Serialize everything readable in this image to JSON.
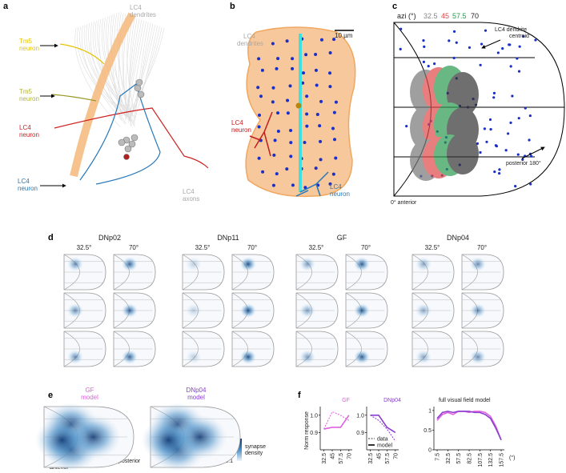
{
  "panels": {
    "a": {
      "label": "a",
      "lc4_dendrites": [
        "LC4",
        "dendrites"
      ],
      "tm5_neuron_1": [
        "Tm5",
        "neuron"
      ],
      "tm5_neuron_2": [
        "Tm5",
        "neuron"
      ],
      "lc4_neuron_red": [
        "LC4",
        "neuron"
      ],
      "lc4_neuron_blue": [
        "LC4",
        "neuron"
      ],
      "lc4_axons": [
        "LC4",
        "axons"
      ]
    },
    "b": {
      "label": "b",
      "lc4_dendrites": [
        "LC4",
        "dendrites"
      ],
      "scale_bar": "10 µm",
      "lc4_neuron_red": [
        "LC4",
        "neuron"
      ],
      "lc4_neuron_blue": [
        "LC4",
        "neuron"
      ]
    },
    "c": {
      "label": "c",
      "legend_title": "azi (°)",
      "legend": [
        "32.5",
        "45",
        "57.5",
        "70"
      ],
      "centroid_label": [
        "LC4 dendrite",
        "centroid"
      ],
      "posterior": "posterior 180°",
      "anterior": "0° anterior"
    },
    "d": {
      "label": "d",
      "groups": [
        {
          "name": "DNp02",
          "angles": [
            "32.5°",
            "70°"
          ]
        },
        {
          "name": "DNp11",
          "angles": [
            "32.5°",
            "70°"
          ]
        },
        {
          "name": "GF",
          "angles": [
            "32.5°",
            "70°"
          ]
        },
        {
          "name": "DNp04",
          "angles": [
            "32.5°",
            "70°"
          ]
        }
      ]
    },
    "e": {
      "label": "e",
      "models": [
        [
          "GF",
          "model"
        ],
        [
          "DNp04",
          "model"
        ]
      ],
      "colorbar": {
        "max": "1",
        "title": [
          "synapse",
          "density"
        ],
        "min": "0.1"
      },
      "anterior": "anterior",
      "posterior": "posterior"
    },
    "f": {
      "label": "f",
      "ylabel": "Norm response"
    }
  },
  "chart_data": [
    {
      "type": "line",
      "title": "GF",
      "x": [
        32.5,
        45,
        57.5,
        70
      ],
      "xlim": [
        27,
        75
      ],
      "xticks": [
        32.5,
        45,
        57.5,
        70
      ],
      "ylim": [
        0.8,
        1.05
      ],
      "yticks": [
        0.9,
        {
          "value": 1,
          "label": "1.0"
        }
      ],
      "series": [
        {
          "style": "dashed",
          "color": "#e060e0",
          "values": [
            0.92,
            1.02,
            1.0,
            0.97
          ]
        },
        {
          "style": "solid",
          "color": "#e060e0",
          "values": [
            0.92,
            0.93,
            0.93,
            1.0
          ]
        }
      ]
    },
    {
      "type": "line",
      "title": "DNp04",
      "x": [
        32.5,
        45,
        57.5,
        70
      ],
      "xlim": [
        27,
        75
      ],
      "xticks": [
        32.5,
        45,
        57.5,
        70
      ],
      "ylim": [
        0.8,
        1.05
      ],
      "yticks": [
        0.9,
        {
          "value": 1,
          "label": "1.0"
        }
      ],
      "legend": "lower left",
      "series": [
        {
          "name": "data",
          "style": "dashed",
          "color": "#8a3fd0",
          "values": [
            1.0,
            0.97,
            0.92,
            0.85
          ]
        },
        {
          "name": "model",
          "style": "solid",
          "color": "#8a3fd0",
          "values": [
            1.0,
            1.0,
            0.93,
            0.9
          ]
        }
      ]
    },
    {
      "type": "line",
      "title": "full visual field model",
      "xlabel": "(°)",
      "x": [
        7.5,
        20,
        32.5,
        45,
        57.5,
        70,
        82.5,
        95,
        107.5,
        120,
        132.5,
        145,
        157.5
      ],
      "xlim": [
        0,
        165
      ],
      "xticks": [
        7.5,
        32.5,
        57.5,
        82.5,
        107.5,
        132.5,
        157.5
      ],
      "ylim": [
        0,
        1.1
      ],
      "yticks": [
        0,
        0.5,
        1
      ],
      "series": [
        {
          "style": "solid",
          "color": "#e060e0",
          "values": [
            0.75,
            0.9,
            0.95,
            0.9,
            0.98,
            0.98,
            0.95,
            0.98,
            0.98,
            0.95,
            0.85,
            0.6,
            0.25
          ]
        },
        {
          "style": "solid",
          "color": "#8a3fd0",
          "values": [
            0.8,
            0.95,
            0.98,
            0.95,
            0.98,
            0.98,
            0.98,
            0.95,
            0.95,
            0.9,
            0.8,
            0.55,
            0.25
          ]
        }
      ]
    }
  ]
}
